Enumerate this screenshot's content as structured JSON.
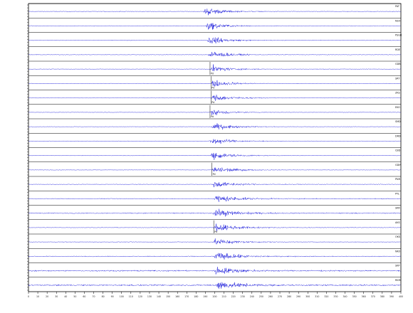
{
  "chart_data": {
    "type": "line",
    "title": "",
    "xlabel": "",
    "ylabel": "",
    "grid": false,
    "x_ticks": [
      "0",
      "10",
      "20",
      "30",
      "40",
      "50",
      "60",
      "70",
      "80",
      "90",
      "100",
      "110",
      "120",
      "130",
      "140",
      "150",
      "160",
      "170",
      "180",
      "190",
      "200",
      "210",
      "220",
      "230",
      "240",
      "250",
      "260",
      "270",
      "280",
      "290",
      "300",
      "310",
      "320",
      "330",
      "340",
      "350",
      "360",
      "370",
      "380",
      "390",
      "400"
    ],
    "xlim": [
      0,
      400
    ],
    "trace_color": "#1f1fdc",
    "frame_color": "#000000",
    "pick_color": "#000000",
    "traces": [
      {
        "station": "PAT",
        "pick": "",
        "arrival": 188,
        "amp": 1.0,
        "noise": 0.06,
        "dur": 45
      },
      {
        "station": "NSO",
        "pick": "",
        "arrival": 190,
        "amp": 0.95,
        "noise": 0.06,
        "dur": 45
      },
      {
        "station": "PSGB",
        "pick": "",
        "arrival": 191,
        "amp": 0.95,
        "noise": 0.06,
        "dur": 50
      },
      {
        "station": "RDE",
        "pick": "",
        "arrival": 193,
        "amp": 0.9,
        "noise": 0.06,
        "dur": 50
      },
      {
        "station": "GDB",
        "pick": "Pd",
        "arrival": 195,
        "amp": 0.8,
        "noise": 0.05,
        "dur": 50
      },
      {
        "station": "SRT",
        "pick": "Pd",
        "arrival": 196,
        "amp": 0.8,
        "noise": 0.05,
        "dur": 50
      },
      {
        "station": "ZKS",
        "pick": "Pd",
        "arrival": 196,
        "amp": 0.85,
        "noise": 0.05,
        "dur": 50
      },
      {
        "station": "EKO",
        "pick": "Pd",
        "arrival": 195,
        "amp": 0.75,
        "noise": 0.05,
        "dur": 45
      },
      {
        "station": "SMD",
        "pick": "",
        "arrival": 196,
        "amp": 0.8,
        "noise": 0.05,
        "dur": 55
      },
      {
        "station": "DRD",
        "pick": "",
        "arrival": 194,
        "amp": 0.8,
        "noise": 0.05,
        "dur": 55
      },
      {
        "station": "CBD",
        "pick": "",
        "arrival": 195,
        "amp": 0.85,
        "noise": 0.05,
        "dur": 55
      },
      {
        "station": "GDM",
        "pick": "Pd",
        "arrival": 197,
        "amp": 0.85,
        "noise": 0.05,
        "dur": 55
      },
      {
        "station": "PNR",
        "pick": "",
        "arrival": 197,
        "amp": 0.75,
        "noise": 0.06,
        "dur": 55
      },
      {
        "station": "PYL",
        "pick": "",
        "arrival": 198,
        "amp": 0.9,
        "noise": 0.08,
        "dur": 60
      },
      {
        "station": "SKR",
        "pick": "",
        "arrival": 198,
        "amp": 0.9,
        "noise": 0.1,
        "dur": 60
      },
      {
        "station": "AKS",
        "pick": "Pd",
        "arrival": 199,
        "amp": 0.9,
        "noise": 0.06,
        "dur": 60
      },
      {
        "station": "OKS",
        "pick": "",
        "arrival": 198,
        "amp": 0.8,
        "noise": 0.06,
        "dur": 55
      },
      {
        "station": "NKO",
        "pick": "",
        "arrival": 199,
        "amp": 0.95,
        "noise": 0.08,
        "dur": 60
      },
      {
        "station": "SKP",
        "pick": "",
        "arrival": 199,
        "amp": 0.9,
        "noise": 0.12,
        "dur": 60
      },
      {
        "station": "RKM",
        "pick": "",
        "arrival": 200,
        "amp": 0.95,
        "noise": 0.14,
        "dur": 60
      }
    ]
  }
}
